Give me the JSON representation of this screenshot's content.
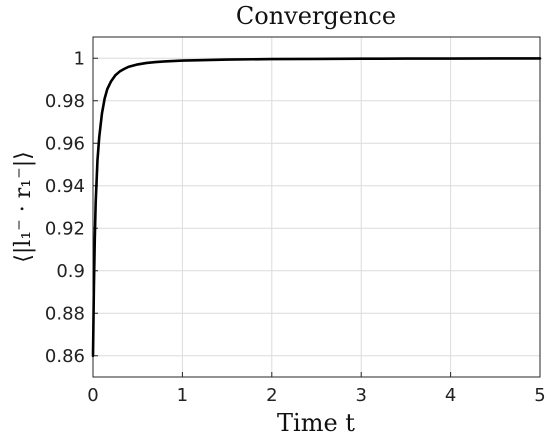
{
  "chart_data": {
    "type": "line",
    "title": "Convergence",
    "xlabel": "Time t",
    "ylabel": "⟨|l₁⁻ · r₁⁻|⟩",
    "xlim": [
      0,
      5
    ],
    "ylim": [
      0.85,
      1.01
    ],
    "xticks": [
      0,
      1,
      2,
      3,
      4,
      5
    ],
    "xtick_labels": [
      "0",
      "1",
      "2",
      "3",
      "4",
      "5"
    ],
    "yticks": [
      0.86,
      0.88,
      0.9,
      0.92,
      0.94,
      0.96,
      0.98,
      1.0
    ],
    "ytick_labels": [
      "0.86",
      "0.88",
      "0.9",
      "0.92",
      "0.94",
      "0.96",
      "0.98",
      "1"
    ],
    "grid": true,
    "series": [
      {
        "color": "#000000",
        "x": [
          0,
          0.01,
          0.02,
          0.03,
          0.05,
          0.07,
          0.1,
          0.13,
          0.16,
          0.2,
          0.25,
          0.3,
          0.35,
          0.4,
          0.5,
          0.6,
          0.7,
          0.8,
          1.0,
          1.2,
          1.5,
          2.0,
          2.5,
          3.0,
          3.5,
          4.0,
          4.5,
          5.0
        ],
        "y": [
          0.86,
          0.892,
          0.915,
          0.932,
          0.952,
          0.963,
          0.974,
          0.981,
          0.9855,
          0.989,
          0.992,
          0.9938,
          0.995,
          0.996,
          0.9971,
          0.9978,
          0.9982,
          0.9985,
          0.9989,
          0.9991,
          0.9994,
          0.9996,
          0.9997,
          0.99978,
          0.99983,
          0.99987,
          0.9999,
          0.99992
        ]
      }
    ]
  }
}
